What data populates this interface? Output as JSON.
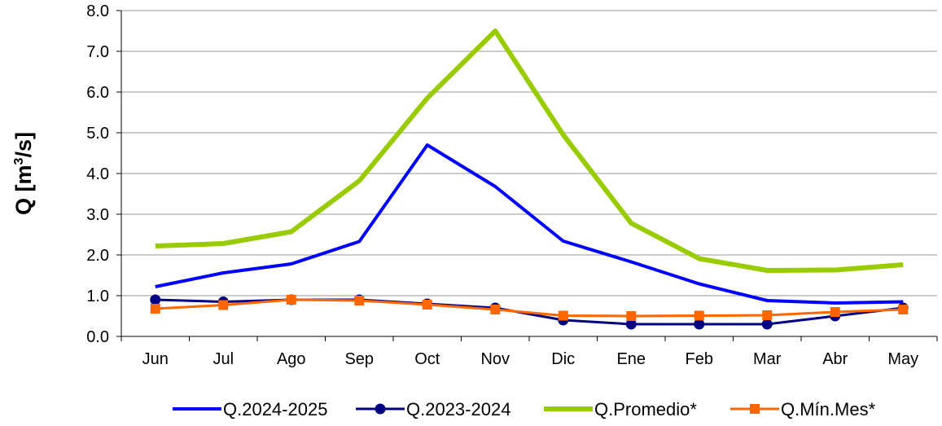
{
  "chart_data": {
    "type": "line",
    "ylabel_main": "Q [m",
    "ylabel_sup": "3",
    "ylabel_end": "/s]",
    "categories": [
      "Jun",
      "Jul",
      "Ago",
      "Sep",
      "Oct",
      "Nov",
      "Dic",
      "Ene",
      "Feb",
      "Mar",
      "Abr",
      "May"
    ],
    "ylim": [
      0,
      8
    ],
    "yticks": [
      "0.0",
      "1.0",
      "2.0",
      "3.0",
      "4.0",
      "5.0",
      "6.0",
      "7.0",
      "8.0"
    ],
    "grid": true,
    "legend_position": "bottom",
    "series": [
      {
        "name": "Q.2024-2025",
        "color": "#0000ff",
        "marker": "none",
        "values": [
          1.22,
          1.56,
          1.78,
          2.33,
          4.7,
          3.68,
          2.34,
          1.83,
          1.29,
          0.88,
          0.82,
          0.85
        ]
      },
      {
        "name": "Q.2023-2024",
        "color": "#000080",
        "marker": "circle",
        "values": [
          0.9,
          0.85,
          0.9,
          0.9,
          0.8,
          0.7,
          0.4,
          0.3,
          0.3,
          0.3,
          0.5,
          0.7
        ]
      },
      {
        "name": "Q.Promedio*",
        "color": "#99cc00",
        "marker": "none",
        "values": [
          2.22,
          2.28,
          2.57,
          3.82,
          5.85,
          7.5,
          4.95,
          2.78,
          1.91,
          1.62,
          1.63,
          1.76
        ]
      },
      {
        "name": "Q.Mín.Mes*",
        "color": "#ff6600",
        "marker": "square",
        "values": [
          0.68,
          0.77,
          0.9,
          0.88,
          0.78,
          0.66,
          0.51,
          0.5,
          0.51,
          0.52,
          0.6,
          0.66
        ]
      }
    ]
  }
}
